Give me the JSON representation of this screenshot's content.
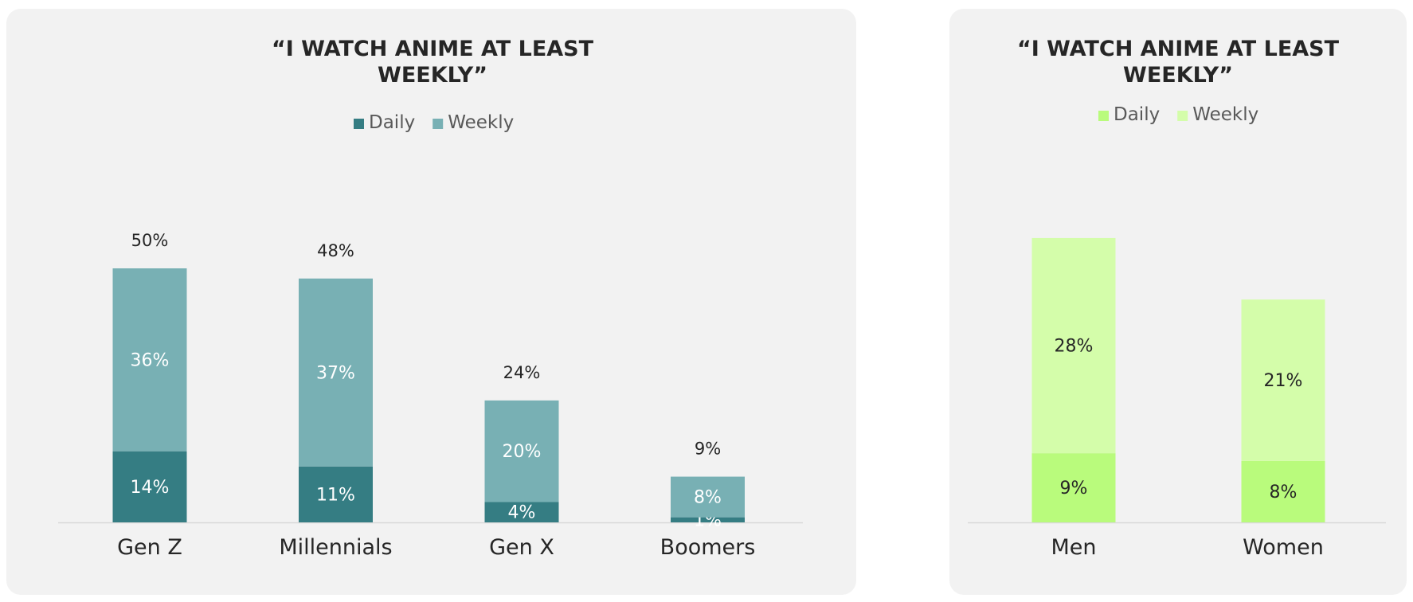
{
  "chart_data": [
    {
      "type": "bar",
      "stacked": true,
      "title_lines": [
        "“I WATCH ANIME AT LEAST",
        "WEEKLY”"
      ],
      "categories": [
        "Gen Z",
        "Millennials",
        "Gen X",
        "Boomers"
      ],
      "series": [
        {
          "name": "Daily",
          "values": [
            14,
            11,
            4,
            1
          ],
          "color": "#357d83",
          "label_color": "#ffffff"
        },
        {
          "name": "Weekly",
          "values": [
            36,
            37,
            20,
            8
          ],
          "color": "#78b0b4",
          "label_color": "#ffffff"
        }
      ],
      "totals": [
        50,
        48,
        24,
        9
      ],
      "value_suffix": "%",
      "legend_position": "top-center",
      "ylim": [
        0,
        56
      ],
      "grid": false
    },
    {
      "type": "bar",
      "stacked": true,
      "title_lines": [
        "“I WATCH ANIME AT LEAST",
        "WEEKLY”"
      ],
      "categories": [
        "Men",
        "Women"
      ],
      "series": [
        {
          "name": "Daily",
          "values": [
            9,
            8
          ],
          "color": "#b9fb7c",
          "label_color": "#262626"
        },
        {
          "name": "Weekly",
          "values": [
            28,
            21
          ],
          "color": "#d4fdaa",
          "label_color": "#262626"
        }
      ],
      "totals": [],
      "value_suffix": "%",
      "legend_position": "top-center",
      "ylim": [
        0,
        42
      ],
      "grid": false
    }
  ]
}
